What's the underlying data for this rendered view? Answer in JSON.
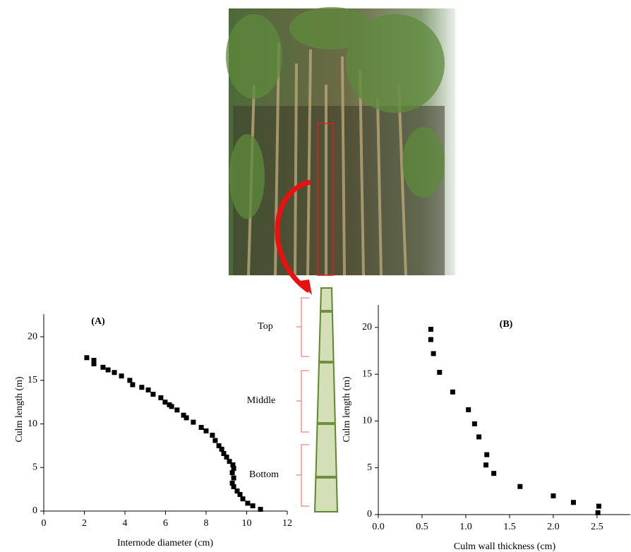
{
  "chart_data": [
    {
      "type": "scatter",
      "title": "(A)",
      "x_label": "Internode diameter (cm)",
      "y_label": "Culm length (m)",
      "color": "#000000",
      "xlim": [
        0,
        12
      ],
      "xticks": [
        0,
        2,
        4,
        6,
        8,
        10,
        12
      ],
      "ylim": [
        0,
        22.6
      ],
      "yticks": [
        0,
        5,
        10,
        15,
        20
      ],
      "x": [
        2.12,
        2.47,
        2.47,
        2.92,
        3.17,
        3.48,
        3.83,
        4.24,
        4.38,
        4.83,
        5.15,
        5.39,
        5.77,
        5.98,
        6.19,
        6.3,
        6.57,
        6.89,
        7.03,
        7.37,
        7.76,
        8.0,
        8.31,
        8.45,
        8.63,
        8.77,
        8.87,
        9.01,
        9.15,
        9.32,
        9.36,
        9.29,
        9.36,
        9.29,
        9.36,
        9.53,
        9.67,
        9.81,
        10.05,
        10.3,
        10.68
      ],
      "values": [
        17.6,
        17.3,
        16.9,
        16.5,
        16.2,
        15.9,
        15.5,
        15.0,
        14.5,
        14.2,
        13.9,
        13.4,
        13.0,
        12.5,
        12.2,
        12.0,
        11.6,
        11.0,
        10.7,
        10.2,
        9.6,
        9.2,
        8.7,
        8.1,
        7.5,
        7.1,
        6.6,
        6.2,
        5.7,
        5.3,
        4.9,
        4.4,
        3.8,
        3.2,
        2.8,
        2.3,
        1.9,
        1.4,
        0.9,
        0.6,
        0.2
      ]
    },
    {
      "type": "scatter",
      "title": "(B)",
      "x_label": "Culm wall thickness (cm)",
      "y_label": "Culm length (m)",
      "color": "#000000",
      "xlim": [
        0,
        2.88
      ],
      "xticks": [
        {
          "value": 0,
          "label": "0.0"
        },
        0.5,
        {
          "value": 1,
          "label": "1.0"
        },
        1.5,
        {
          "value": 2,
          "label": "2.0"
        },
        2.5
      ],
      "ylim": [
        0,
        22.4
      ],
      "yticks": [
        0,
        5,
        10,
        15,
        20
      ],
      "x": [
        0.6,
        0.6,
        0.63,
        0.7,
        0.85,
        1.03,
        1.1,
        1.15,
        1.24,
        1.23,
        1.32,
        1.62,
        2.0,
        2.23,
        2.52,
        2.51
      ],
      "values": [
        19.8,
        18.7,
        17.2,
        15.2,
        13.1,
        11.2,
        9.7,
        8.3,
        6.4,
        5.3,
        4.4,
        3.0,
        2.0,
        1.3,
        0.9,
        0.2
      ]
    }
  ],
  "diagram": {
    "labels": [
      "Top",
      "Middle",
      "Bottom"
    ]
  }
}
